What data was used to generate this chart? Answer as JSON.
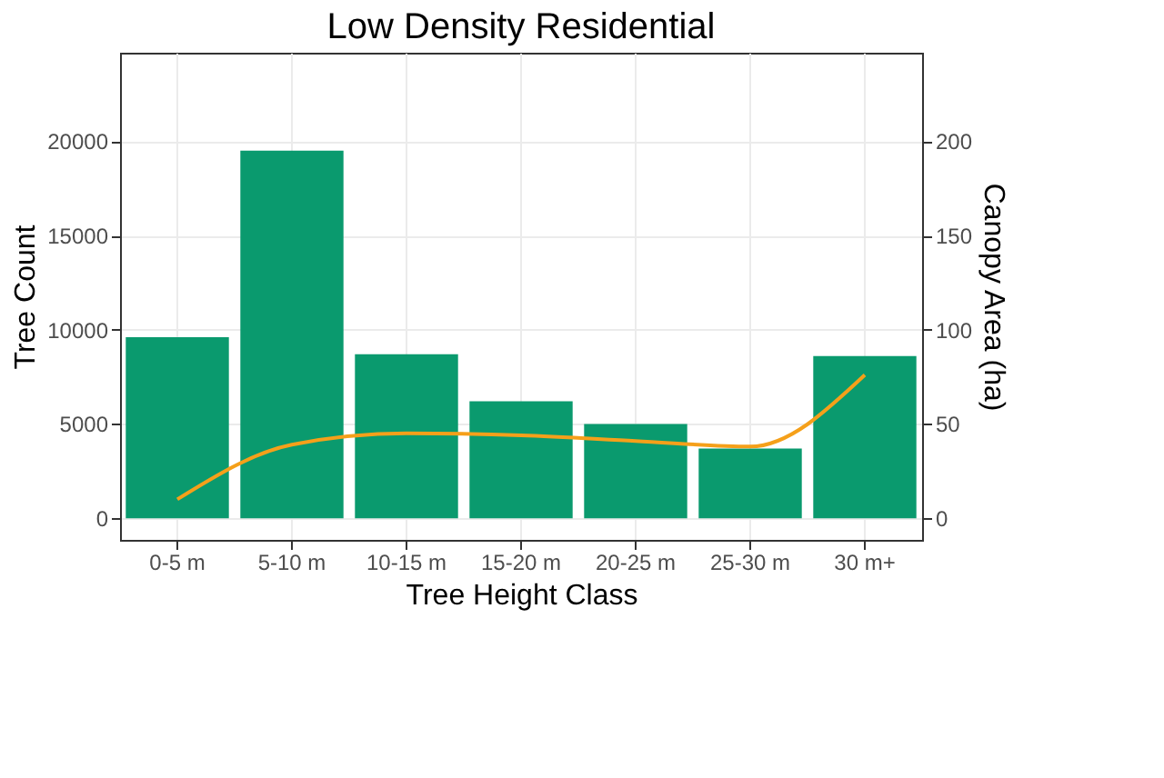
{
  "chart_data": {
    "type": "bar",
    "title": "Low Density Residential",
    "xlabel": "Tree Height Class",
    "ylabel": "Tree Count",
    "y2label": "Canopy Area (ha)",
    "categories": [
      "0-5 m",
      "5-10 m",
      "10-15 m",
      "15-20 m",
      "20-25 m",
      "25-30 m",
      "30 m+"
    ],
    "series": [
      {
        "color": "#0a9a6e",
        "values": [
          9600,
          19500,
          8700,
          6200,
          5000,
          3700,
          8600
        ]
      },
      {
        "type": "line",
        "axis": "y2",
        "color": "#f5a01a",
        "values": [
          10,
          39,
          45,
          44,
          41,
          38,
          76
        ]
      }
    ],
    "ylim": [
      -1150,
      24700
    ],
    "yticks": [
      0,
      5000,
      10000,
      15000,
      20000
    ],
    "y2lim": [
      -11.5,
      247
    ],
    "y2ticks": [
      0,
      50,
      100,
      150,
      200
    ],
    "grid": true,
    "marker": "none",
    "line_style": "solid"
  }
}
